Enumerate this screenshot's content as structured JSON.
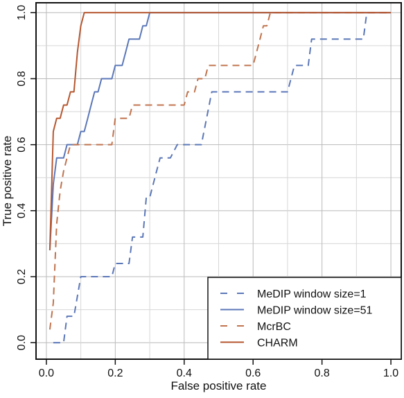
{
  "chart_data": {
    "type": "line",
    "title": "",
    "xlabel": "False positive rate",
    "ylabel": "True positive rate",
    "xlim": [
      -0.03,
      1.03
    ],
    "ylim": [
      -0.05,
      1.03
    ],
    "xticks": [
      0.0,
      0.2,
      0.4,
      0.6,
      0.8,
      1.0
    ],
    "xtick_labels": [
      "0.0",
      "0.2",
      "0.4",
      "0.6",
      "0.8",
      "1.0"
    ],
    "yticks": [
      0.0,
      0.2,
      0.4,
      0.6,
      0.8,
      1.0
    ],
    "ytick_labels": [
      "0.0",
      "0.2",
      "0.4",
      "0.6",
      "0.8",
      "1.0"
    ],
    "grid": true,
    "legend_position": "bottom-right",
    "series": [
      {
        "name": "MeDIP window size=1",
        "color": "#5b77b8",
        "style": "dashed",
        "points": [
          [
            0.02,
            0.0
          ],
          [
            0.05,
            0.0
          ],
          [
            0.06,
            0.08
          ],
          [
            0.08,
            0.08
          ],
          [
            0.1,
            0.2
          ],
          [
            0.13,
            0.2
          ],
          [
            0.19,
            0.2
          ],
          [
            0.2,
            0.24
          ],
          [
            0.24,
            0.24
          ],
          [
            0.25,
            0.32
          ],
          [
            0.28,
            0.32
          ],
          [
            0.29,
            0.44
          ],
          [
            0.3,
            0.44
          ],
          [
            0.32,
            0.52
          ],
          [
            0.33,
            0.56
          ],
          [
            0.36,
            0.56
          ],
          [
            0.38,
            0.6
          ],
          [
            0.45,
            0.6
          ],
          [
            0.48,
            0.76
          ],
          [
            0.7,
            0.76
          ],
          [
            0.72,
            0.84
          ],
          [
            0.76,
            0.84
          ],
          [
            0.77,
            0.92
          ],
          [
            0.92,
            0.92
          ],
          [
            0.93,
            1.0
          ],
          [
            1.0,
            1.0
          ]
        ]
      },
      {
        "name": "MeDIP window size=51",
        "color": "#5b77b8",
        "style": "solid",
        "points": [
          [
            0.01,
            0.28
          ],
          [
            0.02,
            0.48
          ],
          [
            0.03,
            0.56
          ],
          [
            0.05,
            0.56
          ],
          [
            0.06,
            0.6
          ],
          [
            0.09,
            0.6
          ],
          [
            0.1,
            0.64
          ],
          [
            0.11,
            0.64
          ],
          [
            0.12,
            0.68
          ],
          [
            0.13,
            0.72
          ],
          [
            0.14,
            0.76
          ],
          [
            0.15,
            0.76
          ],
          [
            0.16,
            0.8
          ],
          [
            0.19,
            0.8
          ],
          [
            0.2,
            0.84
          ],
          [
            0.22,
            0.84
          ],
          [
            0.23,
            0.88
          ],
          [
            0.24,
            0.92
          ],
          [
            0.27,
            0.92
          ],
          [
            0.28,
            0.96
          ],
          [
            0.29,
            0.96
          ],
          [
            0.3,
            1.0
          ],
          [
            1.0,
            1.0
          ]
        ]
      },
      {
        "name": "McrBC",
        "color": "#c0734e",
        "style": "dashed",
        "points": [
          [
            0.01,
            0.04
          ],
          [
            0.02,
            0.12
          ],
          [
            0.03,
            0.36
          ],
          [
            0.04,
            0.46
          ],
          [
            0.05,
            0.52
          ],
          [
            0.06,
            0.56
          ],
          [
            0.07,
            0.6
          ],
          [
            0.19,
            0.6
          ],
          [
            0.2,
            0.68
          ],
          [
            0.24,
            0.68
          ],
          [
            0.25,
            0.72
          ],
          [
            0.4,
            0.72
          ],
          [
            0.41,
            0.76
          ],
          [
            0.43,
            0.76
          ],
          [
            0.44,
            0.8
          ],
          [
            0.46,
            0.8
          ],
          [
            0.47,
            0.84
          ],
          [
            0.6,
            0.84
          ],
          [
            0.61,
            0.88
          ],
          [
            0.62,
            0.92
          ],
          [
            0.63,
            0.96
          ],
          [
            0.64,
            0.96
          ],
          [
            0.65,
            1.0
          ],
          [
            1.0,
            1.0
          ]
        ]
      },
      {
        "name": "CHARM",
        "color": "#b5562f",
        "style": "solid",
        "points": [
          [
            0.01,
            0.28
          ],
          [
            0.02,
            0.64
          ],
          [
            0.03,
            0.68
          ],
          [
            0.04,
            0.68
          ],
          [
            0.05,
            0.72
          ],
          [
            0.06,
            0.72
          ],
          [
            0.07,
            0.76
          ],
          [
            0.08,
            0.76
          ],
          [
            0.09,
            0.88
          ],
          [
            0.1,
            0.96
          ],
          [
            0.11,
            1.0
          ],
          [
            1.0,
            1.0
          ]
        ]
      }
    ]
  }
}
